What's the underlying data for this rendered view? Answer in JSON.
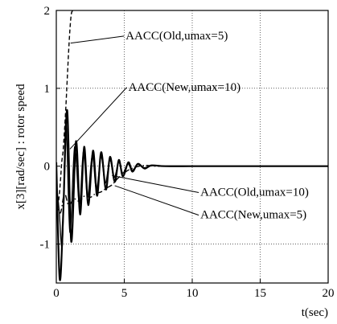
{
  "chart_data": {
    "type": "line",
    "title": "",
    "xlabel": "t(sec)",
    "ylabel": "x[3][rad/sec] : rotor speed",
    "xlim": [
      0,
      20
    ],
    "ylim": [
      -1.5,
      2
    ],
    "x_ticks": [
      0,
      5,
      10,
      15,
      20
    ],
    "x_tick_labels": [
      "0",
      "5",
      "10",
      "15",
      "20"
    ],
    "y_ticks": [
      -1,
      0,
      1,
      2
    ],
    "y_tick_labels": [
      "-1",
      "0",
      "1",
      "2"
    ],
    "grid": true,
    "series": [
      {
        "name": "AACC(Old,umax=5)",
        "style": "dashed",
        "x": [
          0,
          0.1,
          0.2,
          0.3,
          0.4,
          0.5,
          0.6,
          0.7,
          0.8,
          0.9,
          1.0,
          1.1,
          1.2
        ],
        "y": [
          -0.4,
          -0.5,
          -0.4,
          -0.2,
          0.05,
          0.2,
          0.45,
          0.75,
          1.1,
          1.45,
          1.75,
          1.95,
          2.0
        ]
      },
      {
        "name": "AACC(New,umax=10)",
        "style": "solid",
        "x": [
          0,
          0.25,
          0.5,
          0.8,
          1.1,
          1.45,
          1.75,
          2.05,
          2.35,
          2.7,
          3.0,
          3.3,
          3.65,
          3.95,
          4.3,
          4.6,
          4.9,
          5.3,
          5.6,
          6.0,
          6.5,
          7.0,
          8.0,
          10.0,
          12.0,
          15.0,
          20.0
        ],
        "y": [
          0.05,
          -1.45,
          -0.65,
          0.72,
          -0.97,
          0.32,
          -0.62,
          0.25,
          -0.5,
          0.2,
          -0.38,
          0.18,
          -0.3,
          0.12,
          -0.2,
          0.08,
          -0.13,
          0.05,
          -0.07,
          0.03,
          -0.03,
          0.01,
          0.0,
          0.0,
          0.0,
          0.0,
          0.0
        ]
      },
      {
        "name": "AACC(Old,umax=10)",
        "style": "dashdot",
        "x": [
          0,
          0.3,
          0.6,
          0.9,
          1.3,
          1.7,
          2.1,
          2.5,
          2.9,
          3.3,
          3.7,
          4.1,
          4.5,
          4.9,
          5.3,
          5.7,
          6.1,
          6.6,
          7.2,
          8.0,
          9.0,
          10.0,
          12.0,
          15.0,
          20.0
        ],
        "y": [
          -0.45,
          -0.6,
          -0.35,
          -0.5,
          -0.42,
          -0.45,
          -0.38,
          -0.4,
          -0.35,
          -0.33,
          -0.28,
          -0.24,
          -0.16,
          -0.1,
          -0.05,
          -0.02,
          0.0,
          0.01,
          0.0,
          0.0,
          0.0,
          0.0,
          0.0,
          0.0,
          0.0
        ]
      },
      {
        "name": "AACC(New,umax=5)",
        "style": "solid",
        "x": [
          0,
          0.2,
          0.45,
          0.7,
          1.0,
          1.35,
          1.7,
          2.0,
          2.3,
          2.65,
          2.95,
          3.3,
          3.6,
          3.95,
          4.25,
          4.6,
          4.9,
          5.25,
          5.6,
          6.0,
          6.5,
          7.0,
          8.0,
          10.0,
          12.0,
          15.0,
          20.0
        ],
        "y": [
          -0.2,
          -0.55,
          -1.0,
          0.6,
          -0.85,
          0.25,
          -0.5,
          0.2,
          -0.4,
          0.15,
          -0.3,
          0.12,
          -0.22,
          0.08,
          -0.15,
          0.05,
          -0.09,
          0.03,
          -0.05,
          0.02,
          -0.02,
          0.01,
          0.0,
          0.0,
          0.0,
          0.0,
          0.0
        ]
      }
    ],
    "annotations": [
      {
        "text": "AACC(Old,umax=5)",
        "tx": 5.1,
        "ty": 1.63,
        "ax": 1.05,
        "ay": 1.58,
        "anchor": "start"
      },
      {
        "text": "AACC(New,umax=10)",
        "tx": 5.3,
        "ty": 0.97,
        "ax": 1.0,
        "ay": 0.22,
        "anchor": "start"
      },
      {
        "text": "AACC(Old,umax=10)",
        "tx": 10.6,
        "ty": -0.38,
        "ax": 4.1,
        "ay": -0.12,
        "anchor": "start"
      },
      {
        "text": "AACC(New,umax=5)",
        "tx": 10.6,
        "ty": -0.67,
        "ax": 4.3,
        "ay": -0.25,
        "anchor": "start"
      }
    ]
  }
}
